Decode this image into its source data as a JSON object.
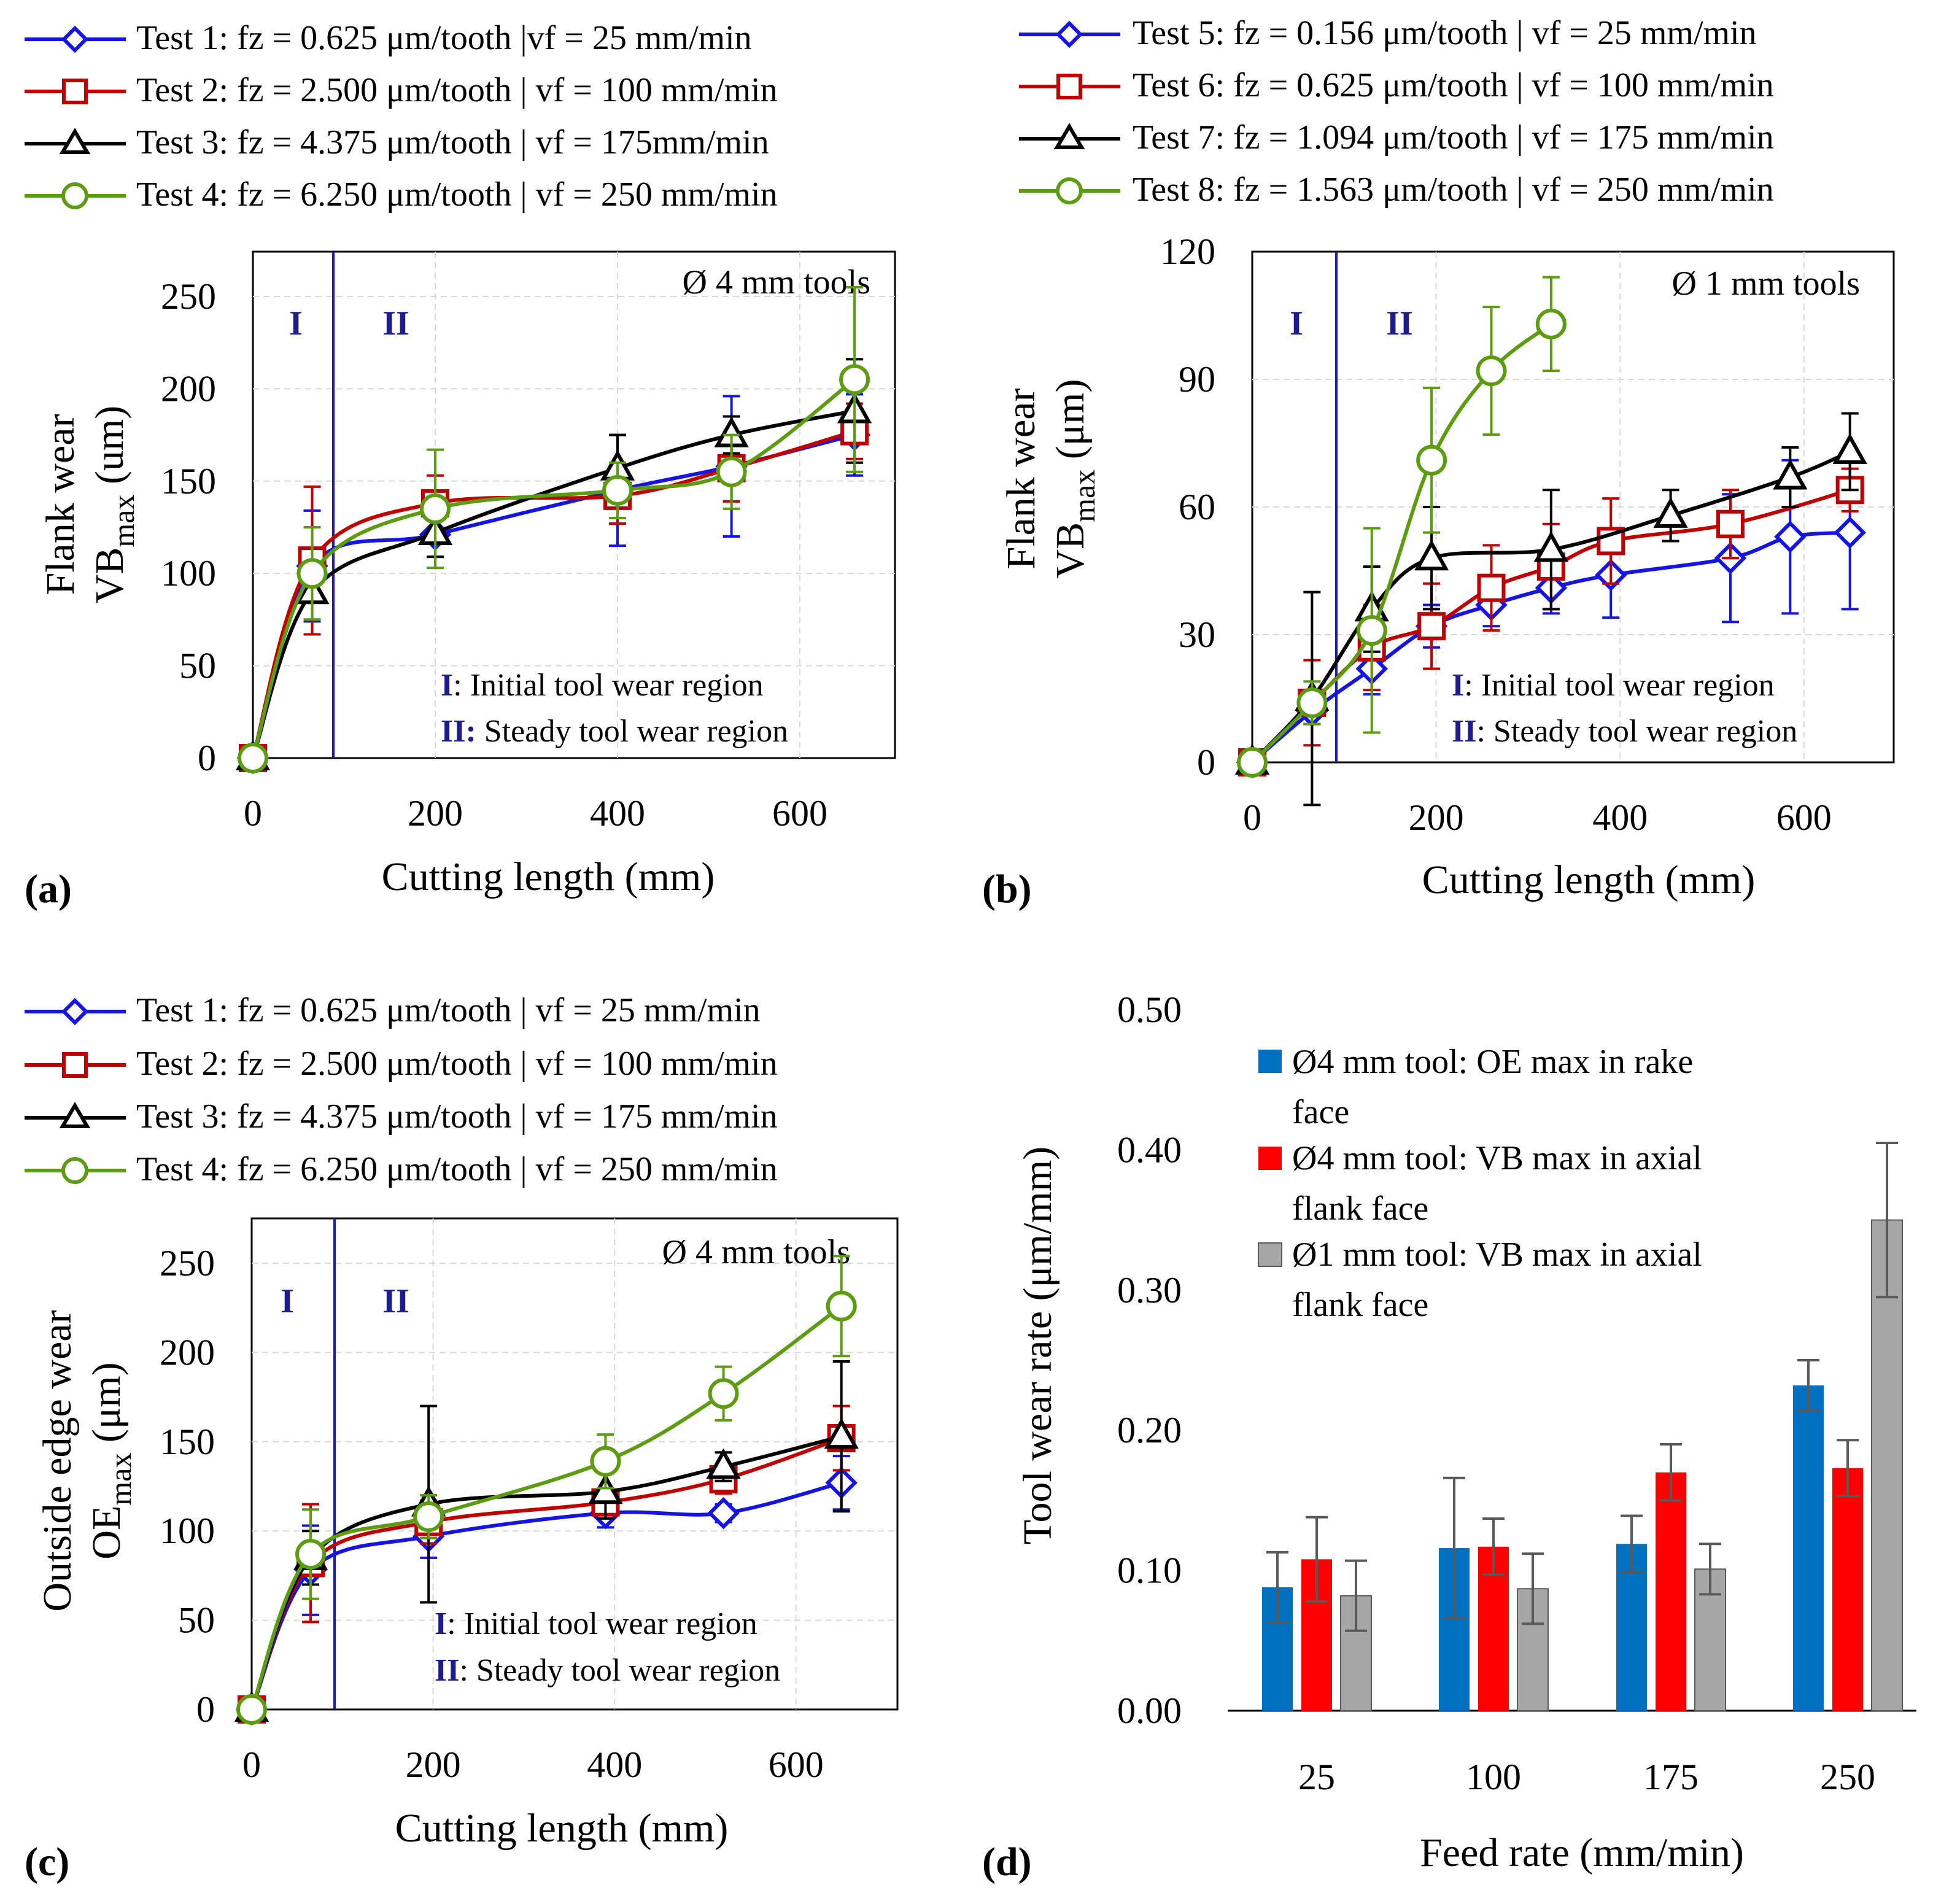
{
  "figure": {
    "panel_a_tag": "(a)",
    "panel_b_tag": "(b)",
    "panel_c_tag": "(c)",
    "panel_d_tag": "(d)"
  },
  "colors": {
    "test_blue": "#1414e6",
    "test_red": "#c00000",
    "test_black": "#000000",
    "test_green": "#5c9c10",
    "region_line": "#1c1cb4",
    "region_text": "#1c1c8c",
    "bar_blue": "#0070c0",
    "bar_red": "#ff0000",
    "bar_gray": "#a6a6a6",
    "error_gray": "#595959"
  },
  "chart_data": [
    {
      "id": "a",
      "type": "line",
      "panel_label": "(a)",
      "title": "",
      "xlabel": "Cutting length (mm)",
      "ylabel_line1": "Flank wear",
      "ylabel_main": "VB",
      "ylabel_sub": "max",
      "ylabel_unit": "(um)",
      "xlim": [
        0,
        700
      ],
      "ylim": [
        0,
        275
      ],
      "xticks": [
        0,
        200,
        400,
        600
      ],
      "yticks": [
        0,
        50,
        100,
        150,
        200,
        250
      ],
      "grid": true,
      "annotation": "Ø 4 mm tools",
      "region_boundary_x": 90,
      "region_labels": [
        "I",
        "II"
      ],
      "region_notes": [
        {
          "bold": "I",
          "text": ": Initial tool wear region"
        },
        {
          "bold": "II:",
          "text": " Steady tool wear region"
        }
      ],
      "legend": [
        "Test 1: fz = 0.625 μm/tooth  |vf = 25 mm/min",
        "Test 2: fz = 2.500 μm/tooth  |  vf = 100 mm/min",
        "Test 3: fz = 4.375 μm/tooth  |  vf = 175mm/min",
        "Test 4: fz = 6.250 μm/tooth  |  vf = 250 mm/min"
      ],
      "series": [
        {
          "name": "Test 1",
          "color": "#1414e6",
          "marker": "diamond",
          "x": [
            0,
            65,
            200,
            400,
            525,
            660
          ],
          "y": [
            0,
            104,
            121,
            145,
            158,
            175
          ],
          "err": [
            0,
            30,
            12,
            30,
            38,
            22
          ]
        },
        {
          "name": "Test 2",
          "color": "#c00000",
          "marker": "square",
          "x": [
            0,
            65,
            200,
            400,
            525,
            660
          ],
          "y": [
            0,
            107,
            138,
            142,
            157,
            177
          ],
          "err": [
            0,
            40,
            15,
            15,
            18,
            15
          ]
        },
        {
          "name": "Test 3",
          "color": "#000000",
          "marker": "triangle",
          "x": [
            0,
            65,
            200,
            400,
            525,
            660
          ],
          "y": [
            0,
            90,
            122,
            157,
            175,
            188
          ],
          "err": [
            0,
            15,
            13,
            18,
            10,
            28
          ]
        },
        {
          "name": "Test 4",
          "color": "#5c9c10",
          "marker": "circle",
          "x": [
            0,
            65,
            200,
            400,
            525,
            660
          ],
          "y": [
            0,
            100,
            135,
            145,
            155,
            205
          ],
          "err": [
            0,
            25,
            32,
            15,
            20,
            50
          ]
        }
      ]
    },
    {
      "id": "b",
      "type": "line",
      "panel_label": "(b)",
      "title": "",
      "xlabel": "Cutting length (mm)",
      "ylabel_line1": "Flank wear",
      "ylabel_main": "VB",
      "ylabel_sub": "max",
      "ylabel_unit": "(μm)",
      "xlim": [
        0,
        700
      ],
      "ylim": [
        0,
        120
      ],
      "xticks": [
        0,
        200,
        400,
        600
      ],
      "yticks": [
        0,
        30,
        60,
        90,
        120
      ],
      "grid": true,
      "annotation": "Ø 1 mm tools",
      "region_boundary_x": 90,
      "region_labels": [
        "I",
        "II"
      ],
      "region_notes": [
        {
          "bold": "I",
          "text": ": Initial tool wear region"
        },
        {
          "bold": "II",
          "text": ": Steady tool wear region"
        }
      ],
      "legend": [
        "Test 5: fz = 0.156 μm/tooth  |  vf = 25 mm/min",
        "Test 6: fz = 0.625 μm/tooth  |  vf = 100 mm/min",
        "Test 7: fz = 1.094 μm/tooth  |  vf = 175 mm/min",
        "Test 8: fz = 1.563 μm/tooth  |  vf = 250 mm/min"
      ],
      "series": [
        {
          "name": "Test 5",
          "color": "#1414e6",
          "marker": "diamond",
          "x": [
            0,
            65,
            130,
            195,
            260,
            325,
            390,
            520,
            585,
            650
          ],
          "y": [
            0,
            12,
            22,
            32,
            37,
            41,
            44,
            48,
            53,
            54
          ],
          "err": [
            0,
            3,
            6,
            5,
            5,
            6,
            10,
            15,
            18,
            18
          ]
        },
        {
          "name": "Test 6",
          "color": "#c00000",
          "marker": "square",
          "x": [
            0,
            65,
            130,
            195,
            260,
            325,
            390,
            520,
            650
          ],
          "y": [
            0,
            14,
            27,
            32,
            41,
            46,
            52,
            56,
            64
          ],
          "err": [
            0,
            10,
            10,
            10,
            10,
            10,
            10,
            8,
            5
          ]
        },
        {
          "name": "Test 7",
          "color": "#000000",
          "marker": "triangle",
          "x": [
            0,
            65,
            130,
            195,
            325,
            455,
            585,
            650
          ],
          "y": [
            0,
            15,
            36,
            48,
            50,
            58,
            67,
            73
          ],
          "err": [
            0,
            25,
            10,
            12,
            14,
            6,
            7,
            9
          ]
        },
        {
          "name": "Test 8",
          "color": "#5c9c10",
          "marker": "circle",
          "x": [
            0,
            65,
            130,
            195,
            260,
            325
          ],
          "y": [
            0,
            14,
            31,
            71,
            92,
            103
          ],
          "err": [
            0,
            5,
            24,
            17,
            15,
            11
          ]
        }
      ]
    },
    {
      "id": "c",
      "type": "line",
      "panel_label": "(c)",
      "title": "",
      "xlabel": "Cutting length (mm)",
      "ylabel_line1": "Outside edge wear",
      "ylabel_main": "OE",
      "ylabel_sub": "max",
      "ylabel_unit": "(μm)",
      "xlim": [
        0,
        700
      ],
      "ylim": [
        0,
        275
      ],
      "xticks": [
        0,
        200,
        400,
        600
      ],
      "yticks": [
        0,
        50,
        100,
        150,
        200,
        250
      ],
      "grid": true,
      "annotation": "Ø 4 mm tools",
      "region_boundary_x": 90,
      "region_labels": [
        "I",
        "II"
      ],
      "region_notes": [
        {
          "bold": "I",
          "text": ": Initial tool wear region"
        },
        {
          "bold": "II",
          "text": ": Steady tool wear region"
        }
      ],
      "legend": [
        "Test 1: fz = 0.625 μm/tooth  |  vf = 25 mm/min",
        "Test 2: fz = 2.500 μm/tooth  |  vf = 100 mm/min",
        "Test 3: fz = 4.375 μm/tooth  |  vf = 175 mm/min",
        "Test 4: fz = 6.250 μm/tooth  |  vf = 250 mm/min"
      ],
      "series": [
        {
          "name": "Test 1",
          "color": "#1414e6",
          "marker": "diamond",
          "x": [
            0,
            65,
            195,
            390,
            520,
            650
          ],
          "y": [
            0,
            78,
            97,
            110,
            110,
            127
          ],
          "err": [
            0,
            25,
            12,
            8,
            5,
            15
          ]
        },
        {
          "name": "Test 2",
          "color": "#c00000",
          "marker": "square",
          "x": [
            0,
            65,
            195,
            390,
            520,
            650
          ],
          "y": [
            0,
            82,
            105,
            116,
            129,
            152
          ],
          "err": [
            0,
            33,
            12,
            5,
            8,
            18
          ]
        },
        {
          "name": "Test 3",
          "color": "#000000",
          "marker": "triangle",
          "x": [
            0,
            65,
            195,
            390,
            520,
            650
          ],
          "y": [
            0,
            85,
            115,
            122,
            136,
            153
          ],
          "err": [
            0,
            15,
            55,
            15,
            8,
            42
          ]
        },
        {
          "name": "Test 4",
          "color": "#5c9c10",
          "marker": "circle",
          "x": [
            0,
            65,
            195,
            390,
            520,
            650
          ],
          "y": [
            0,
            87,
            108,
            139,
            177,
            226
          ],
          "err": [
            0,
            25,
            12,
            15,
            15,
            28
          ]
        }
      ]
    },
    {
      "id": "d",
      "type": "bar",
      "panel_label": "(d)",
      "title": "",
      "xlabel": "Feed rate (mm/min)",
      "ylabel": "Tool wear rate (μm/mm)",
      "ylim": [
        0,
        0.5
      ],
      "yticks": [
        "0.00",
        "0.10",
        "0.20",
        "0.30",
        "0.40",
        "0.50"
      ],
      "categories": [
        "25",
        "100",
        "175",
        "250"
      ],
      "grid": false,
      "legend_position": "top-left",
      "series": [
        {
          "name_lines": [
            "Ø4 mm tool: OE max in rake",
            "face"
          ],
          "color": "#0070c0",
          "values": [
            0.088,
            0.116,
            0.119,
            0.232
          ],
          "err": [
            0.025,
            0.05,
            0.02,
            0.018
          ]
        },
        {
          "name_lines": [
            "Ø4 mm tool: VB max in axial",
            "flank face"
          ],
          "color": "#ff0000",
          "values": [
            0.108,
            0.117,
            0.17,
            0.173
          ],
          "err": [
            0.03,
            0.02,
            0.02,
            0.02
          ]
        },
        {
          "name_lines": [
            "Ø1 mm tool: VB max in axial",
            "flank face"
          ],
          "color": "#a6a6a6",
          "values": [
            0.082,
            0.087,
            0.101,
            0.35
          ],
          "err": [
            0.025,
            0.025,
            0.018,
            0.055
          ]
        }
      ]
    }
  ]
}
